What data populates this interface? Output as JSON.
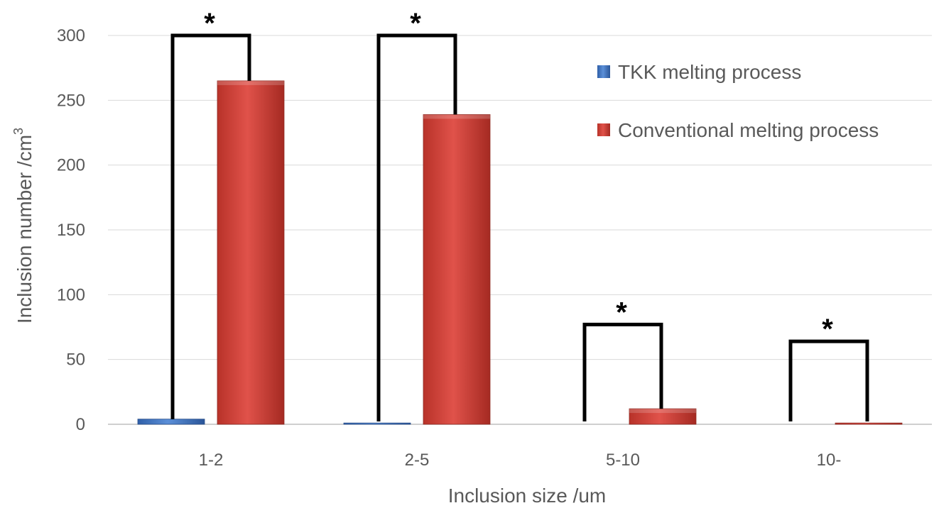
{
  "chart_data": {
    "type": "bar",
    "title": "",
    "xlabel": "Inclusion size /um",
    "ylabel_main": "Inclusion number /cm",
    "ylabel_sup": "3",
    "ylim": [
      0,
      300
    ],
    "yticks": [
      0,
      50,
      100,
      150,
      200,
      250,
      300
    ],
    "grid": true,
    "legend_position": "top-right",
    "categories": [
      "1-2",
      "2-5",
      "5-10",
      "10-"
    ],
    "series": [
      {
        "name": "TKK melting process",
        "values": [
          4,
          1,
          0,
          0
        ],
        "color": "#3f74c0"
      },
      {
        "name": "Conventional melting process",
        "values": [
          265,
          239,
          12,
          1
        ],
        "color": "#c0392f"
      }
    ],
    "significance": [
      {
        "category": "1-2",
        "marker": "*",
        "bracket_top": 300
      },
      {
        "category": "2-5",
        "marker": "*",
        "bracket_top": 300
      },
      {
        "category": "5-10",
        "marker": "*",
        "bracket_top": 77
      },
      {
        "category": "10-",
        "marker": "*",
        "bracket_top": 64
      }
    ]
  }
}
